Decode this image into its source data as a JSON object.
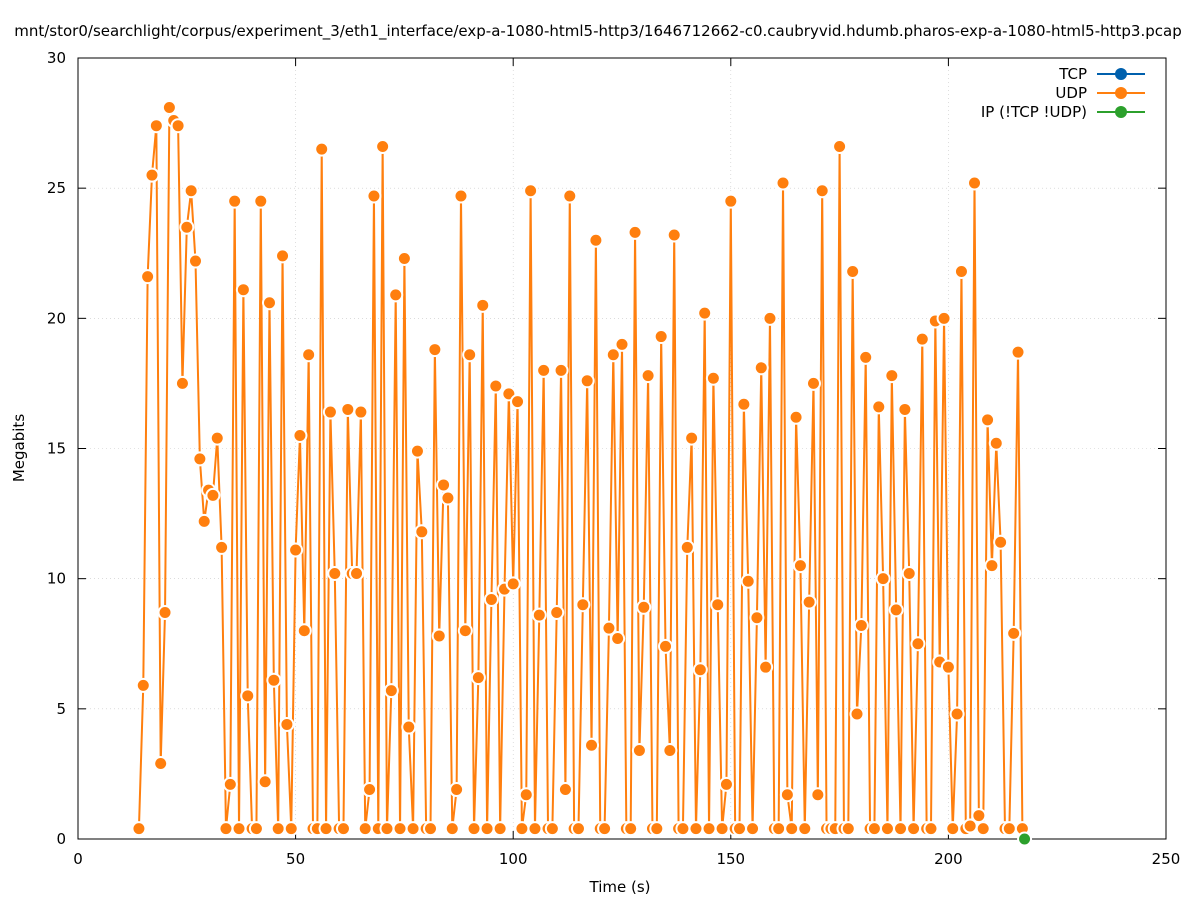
{
  "chart_data": {
    "type": "line",
    "title": "mnt/stor0/searchlight/corpus/experiment_3/eth1_interface/exp-a-1080-html5-http3/1646712662-c0.caubryvid.hdumb.pharos-exp-a-1080-html5-http3.pcap",
    "xlabel": "Time (s)",
    "ylabel": "Megabits",
    "xlim": [
      0,
      250
    ],
    "ylim": [
      0,
      30
    ],
    "xticks": [
      0,
      50,
      100,
      150,
      200,
      250
    ],
    "yticks": [
      0,
      5,
      10,
      15,
      20,
      25,
      30
    ],
    "grid": true,
    "legend_position": "top-right",
    "series": [
      {
        "name": "TCP",
        "color": "#0060ad",
        "points": []
      },
      {
        "name": "UDP",
        "color": "#ff7f0e",
        "points": [
          [
            14,
            0.4
          ],
          [
            15,
            5.9
          ],
          [
            16,
            21.6
          ],
          [
            17,
            25.5
          ],
          [
            18,
            27.4
          ],
          [
            19,
            2.9
          ],
          [
            20,
            8.7
          ],
          [
            21,
            28.1
          ],
          [
            22,
            27.6
          ],
          [
            23,
            27.4
          ],
          [
            24,
            17.5
          ],
          [
            25,
            23.5
          ],
          [
            26,
            24.9
          ],
          [
            27,
            22.2
          ],
          [
            28,
            14.6
          ],
          [
            29,
            12.2
          ],
          [
            30,
            13.4
          ],
          [
            31,
            13.2
          ],
          [
            32,
            15.4
          ],
          [
            33,
            11.2
          ],
          [
            34,
            0.4
          ],
          [
            35,
            2.1
          ],
          [
            36,
            24.5
          ],
          [
            37,
            0.4
          ],
          [
            38,
            21.1
          ],
          [
            39,
            5.5
          ],
          [
            40,
            0.4
          ],
          [
            41,
            0.4
          ],
          [
            42,
            24.5
          ],
          [
            43,
            2.2
          ],
          [
            44,
            20.6
          ],
          [
            45,
            6.1
          ],
          [
            46,
            0.4
          ],
          [
            47,
            22.4
          ],
          [
            48,
            4.4
          ],
          [
            49,
            0.4
          ],
          [
            50,
            11.1
          ],
          [
            51,
            15.5
          ],
          [
            52,
            8.0
          ],
          [
            53,
            18.6
          ],
          [
            54,
            0.4
          ],
          [
            55,
            0.4
          ],
          [
            56,
            26.5
          ],
          [
            57,
            0.4
          ],
          [
            58,
            16.4
          ],
          [
            59,
            10.2
          ],
          [
            60,
            0.4
          ],
          [
            61,
            0.4
          ],
          [
            62,
            16.5
          ],
          [
            63,
            10.2
          ],
          [
            64,
            10.2
          ],
          [
            65,
            16.4
          ],
          [
            66,
            0.4
          ],
          [
            67,
            1.9
          ],
          [
            68,
            24.7
          ],
          [
            69,
            0.4
          ],
          [
            70,
            26.6
          ],
          [
            71,
            0.4
          ],
          [
            72,
            5.7
          ],
          [
            73,
            20.9
          ],
          [
            74,
            0.4
          ],
          [
            75,
            22.3
          ],
          [
            76,
            4.3
          ],
          [
            77,
            0.4
          ],
          [
            78,
            14.9
          ],
          [
            79,
            11.8
          ],
          [
            80,
            0.4
          ],
          [
            81,
            0.4
          ],
          [
            82,
            18.8
          ],
          [
            83,
            7.8
          ],
          [
            84,
            13.6
          ],
          [
            85,
            13.1
          ],
          [
            86,
            0.4
          ],
          [
            87,
            1.9
          ],
          [
            88,
            24.7
          ],
          [
            89,
            8.0
          ],
          [
            90,
            18.6
          ],
          [
            91,
            0.4
          ],
          [
            92,
            6.2
          ],
          [
            93,
            20.5
          ],
          [
            94,
            0.4
          ],
          [
            95,
            9.2
          ],
          [
            96,
            17.4
          ],
          [
            97,
            0.4
          ],
          [
            98,
            9.6
          ],
          [
            99,
            17.1
          ],
          [
            100,
            9.8
          ],
          [
            101,
            16.8
          ],
          [
            102,
            0.4
          ],
          [
            103,
            1.7
          ],
          [
            104,
            24.9
          ],
          [
            105,
            0.4
          ],
          [
            106,
            8.6
          ],
          [
            107,
            18.0
          ],
          [
            108,
            0.4
          ],
          [
            109,
            0.4
          ],
          [
            110,
            8.7
          ],
          [
            111,
            18.0
          ],
          [
            112,
            1.9
          ],
          [
            113,
            24.7
          ],
          [
            114,
            0.4
          ],
          [
            115,
            0.4
          ],
          [
            116,
            9.0
          ],
          [
            117,
            17.6
          ],
          [
            118,
            3.6
          ],
          [
            119,
            23.0
          ],
          [
            120,
            0.4
          ],
          [
            121,
            0.4
          ],
          [
            122,
            8.1
          ],
          [
            123,
            18.6
          ],
          [
            124,
            7.7
          ],
          [
            125,
            19.0
          ],
          [
            126,
            0.4
          ],
          [
            127,
            0.4
          ],
          [
            128,
            23.3
          ],
          [
            129,
            3.4
          ],
          [
            130,
            8.9
          ],
          [
            131,
            17.8
          ],
          [
            132,
            0.4
          ],
          [
            133,
            0.4
          ],
          [
            134,
            19.3
          ],
          [
            135,
            7.4
          ],
          [
            136,
            3.4
          ],
          [
            137,
            23.2
          ],
          [
            138,
            0.4
          ],
          [
            139,
            0.4
          ],
          [
            140,
            11.2
          ],
          [
            141,
            15.4
          ],
          [
            142,
            0.4
          ],
          [
            143,
            6.5
          ],
          [
            144,
            20.2
          ],
          [
            145,
            0.4
          ],
          [
            146,
            17.7
          ],
          [
            147,
            9.0
          ],
          [
            148,
            0.4
          ],
          [
            149,
            2.1
          ],
          [
            150,
            24.5
          ],
          [
            151,
            0.4
          ],
          [
            152,
            0.4
          ],
          [
            153,
            16.7
          ],
          [
            154,
            9.9
          ],
          [
            155,
            0.4
          ],
          [
            156,
            8.5
          ],
          [
            157,
            18.1
          ],
          [
            158,
            6.6
          ],
          [
            159,
            20.0
          ],
          [
            160,
            0.4
          ],
          [
            161,
            0.4
          ],
          [
            162,
            25.2
          ],
          [
            163,
            1.7
          ],
          [
            164,
            0.4
          ],
          [
            165,
            16.2
          ],
          [
            166,
            10.5
          ],
          [
            167,
            0.4
          ],
          [
            168,
            9.1
          ],
          [
            169,
            17.5
          ],
          [
            170,
            1.7
          ],
          [
            171,
            24.9
          ],
          [
            172,
            0.4
          ],
          [
            173,
            0.4
          ],
          [
            174,
            0.4
          ],
          [
            175,
            26.6
          ],
          [
            176,
            0.4
          ],
          [
            177,
            0.4
          ],
          [
            178,
            21.8
          ],
          [
            179,
            4.8
          ],
          [
            180,
            8.2
          ],
          [
            181,
            18.5
          ],
          [
            182,
            0.4
          ],
          [
            183,
            0.4
          ],
          [
            184,
            16.6
          ],
          [
            185,
            10.0
          ],
          [
            186,
            0.4
          ],
          [
            187,
            17.8
          ],
          [
            188,
            8.8
          ],
          [
            189,
            0.4
          ],
          [
            190,
            16.5
          ],
          [
            191,
            10.2
          ],
          [
            192,
            0.4
          ],
          [
            193,
            7.5
          ],
          [
            194,
            19.2
          ],
          [
            195,
            0.4
          ],
          [
            196,
            0.4
          ],
          [
            197,
            19.9
          ],
          [
            198,
            6.8
          ],
          [
            199,
            20.0
          ],
          [
            200,
            6.6
          ],
          [
            201,
            0.4
          ],
          [
            202,
            4.8
          ],
          [
            203,
            21.8
          ],
          [
            204,
            0.4
          ],
          [
            205,
            0.5
          ],
          [
            206,
            25.2
          ],
          [
            207,
            0.9
          ],
          [
            208,
            0.4
          ],
          [
            209,
            16.1
          ],
          [
            210,
            10.5
          ],
          [
            211,
            15.2
          ],
          [
            212,
            11.4
          ],
          [
            213,
            0.4
          ],
          [
            214,
            0.4
          ],
          [
            215,
            7.9
          ],
          [
            216,
            18.7
          ],
          [
            217,
            0.4
          ]
        ]
      },
      {
        "name": "IP (!TCP  !UDP)",
        "color": "#2ca02c",
        "points": [
          [
            217.5,
            0
          ]
        ]
      }
    ]
  }
}
